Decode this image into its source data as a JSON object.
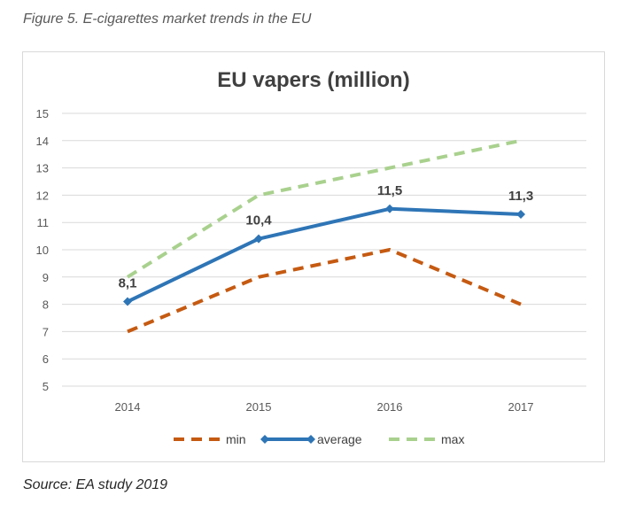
{
  "caption": "Figure 5. E-cigarettes market trends in the EU",
  "source": "Source: EA study 2019",
  "colors": {
    "min": "#c55a11",
    "average": "#2e75b6",
    "max": "#a9d18e",
    "grid": "#d9d9d9",
    "text": "#595959"
  },
  "chart_data": {
    "type": "line",
    "title": "EU vapers (million)",
    "xlabel": "",
    "ylabel": "",
    "categories": [
      "2014",
      "2015",
      "2016",
      "2017"
    ],
    "ylim": [
      5,
      15
    ],
    "yticks": [
      5,
      6,
      7,
      8,
      9,
      10,
      11,
      12,
      13,
      14,
      15
    ],
    "grid": true,
    "legend_position": "bottom",
    "series": [
      {
        "name": "min",
        "values": [
          7,
          9,
          10,
          8
        ],
        "style": "dashed",
        "color": "#c55a11",
        "markers": false
      },
      {
        "name": "average",
        "values": [
          8.1,
          10.4,
          11.5,
          11.3
        ],
        "style": "solid",
        "color": "#2e75b6",
        "markers": true,
        "data_labels": [
          "8,1",
          "10,4",
          "11,5",
          "11,3"
        ]
      },
      {
        "name": "max",
        "values": [
          9,
          12,
          13,
          14
        ],
        "style": "dashed",
        "color": "#a9d18e",
        "markers": false
      }
    ]
  }
}
